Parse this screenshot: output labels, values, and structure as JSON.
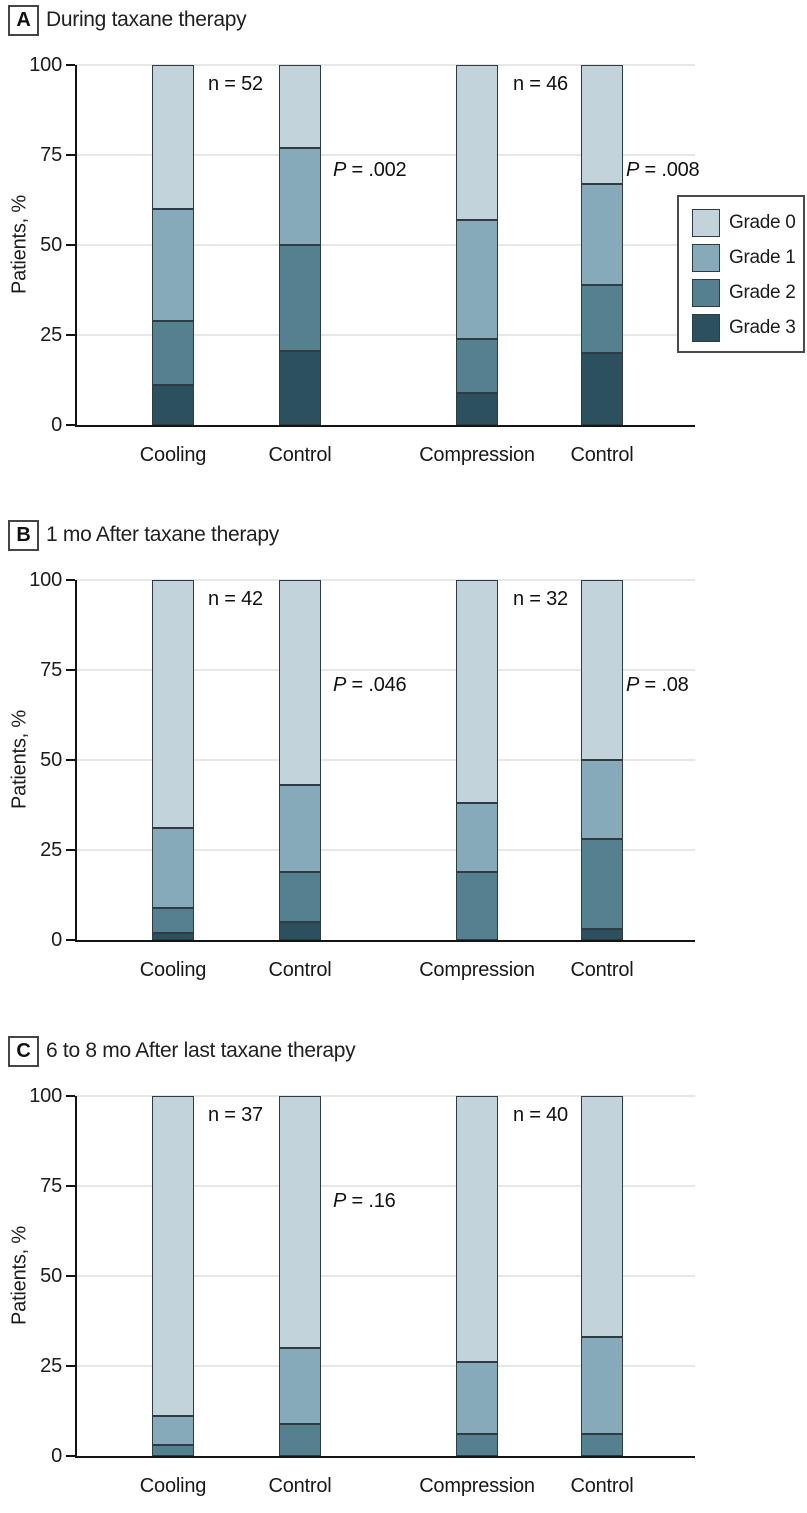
{
  "figure_title": "Neuropathy grades with cooling and compression during and after taxane therapy",
  "colors": {
    "Grade 0": "#c3d3db",
    "Grade 1": "#87aabb",
    "Grade 2": "#55808f",
    "Grade 3": "#2d505f",
    "segment_border": "#2f3b42",
    "gridline": "#e7e7e7",
    "axis": "#141414"
  },
  "legend": {
    "entries": [
      "Grade 0",
      "Grade 1",
      "Grade 2",
      "Grade 3"
    ]
  },
  "chart_data": [
    {
      "type": "bar",
      "stacked": true,
      "panel_label": "A",
      "title": "During taxane therapy",
      "ylabel": "Patients, %",
      "ylim": [
        0,
        100
      ],
      "yticks": [
        0,
        25,
        50,
        75,
        100
      ],
      "grid": true,
      "legend_position": "right",
      "categories": [
        "Cooling",
        "Control",
        "Compression",
        "Control"
      ],
      "series": [
        {
          "name": "Grade 3",
          "values": [
            11,
            20.5,
            9,
            20
          ]
        },
        {
          "name": "Grade 2",
          "values": [
            18,
            29.5,
            15,
            19
          ]
        },
        {
          "name": "Grade 1",
          "values": [
            31,
            27,
            33,
            28
          ]
        },
        {
          "name": "Grade 0",
          "values": [
            40,
            23,
            43,
            33
          ]
        }
      ],
      "annotations": [
        {
          "slot": "n1",
          "text": "n = 52"
        },
        {
          "slot": "p1",
          "text": "P = .002"
        },
        {
          "slot": "n2",
          "text": "n = 46"
        },
        {
          "slot": "p2",
          "text": "P = .008"
        }
      ]
    },
    {
      "type": "bar",
      "stacked": true,
      "panel_label": "B",
      "title": "1 mo After taxane therapy",
      "ylabel": "Patients, %",
      "ylim": [
        0,
        100
      ],
      "yticks": [
        0,
        25,
        50,
        75,
        100
      ],
      "grid": true,
      "categories": [
        "Cooling",
        "Control",
        "Compression",
        "Control"
      ],
      "series": [
        {
          "name": "Grade 3",
          "values": [
            2,
            5,
            0,
            3
          ]
        },
        {
          "name": "Grade 2",
          "values": [
            7,
            14,
            19,
            25
          ]
        },
        {
          "name": "Grade 1",
          "values": [
            22,
            24,
            19,
            22
          ]
        },
        {
          "name": "Grade 0",
          "values": [
            69,
            57,
            62,
            50
          ]
        }
      ],
      "annotations": [
        {
          "slot": "n1",
          "text": "n = 42"
        },
        {
          "slot": "p1",
          "text": "P = .046"
        },
        {
          "slot": "n2",
          "text": "n = 32"
        },
        {
          "slot": "p2",
          "text": "P = .08"
        }
      ]
    },
    {
      "type": "bar",
      "stacked": true,
      "panel_label": "C",
      "title": "6 to 8 mo After last taxane therapy",
      "ylabel": "Patients, %",
      "ylim": [
        0,
        100
      ],
      "yticks": [
        0,
        25,
        50,
        75,
        100
      ],
      "grid": true,
      "categories": [
        "Cooling",
        "Control",
        "Compression",
        "Control"
      ],
      "series": [
        {
          "name": "Grade 3",
          "values": [
            0,
            0,
            0,
            0
          ]
        },
        {
          "name": "Grade 2",
          "values": [
            3,
            9,
            6,
            6
          ]
        },
        {
          "name": "Grade 1",
          "values": [
            8,
            21,
            20,
            27
          ]
        },
        {
          "name": "Grade 0",
          "values": [
            89,
            70,
            74,
            67
          ]
        }
      ],
      "annotations": [
        {
          "slot": "n1",
          "text": "n = 37"
        },
        {
          "slot": "p1",
          "text": "P = .16"
        },
        {
          "slot": "n2",
          "text": "n = 40"
        }
      ]
    }
  ]
}
